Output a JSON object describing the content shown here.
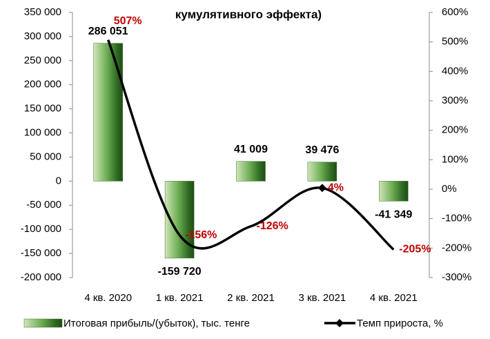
{
  "chart_data": {
    "type": "bar_line",
    "title": "кумулятивного эффекта)",
    "categories": [
      "4 кв. 2020",
      "1 кв. 2021",
      "2 кв. 2021",
      "3 кв. 2021",
      "4 кв. 2021"
    ],
    "series": [
      {
        "name": "Итоговая прибыль/(убыток), тыс. тенге",
        "type": "bar",
        "color": "#4e8a3e",
        "values": [
          286051,
          -159720,
          41009,
          39476,
          -41349
        ],
        "value_labels": [
          "286 051",
          "-159 720",
          "41 009",
          "39 476",
          "-41 349"
        ]
      },
      {
        "name": "Темп прироста, %",
        "type": "line",
        "axis": "y2",
        "color": "#000000",
        "values": [
          507,
          -156,
          -126,
          4,
          -205
        ],
        "value_labels": [
          "507%",
          "-156%",
          "-126%",
          "4%",
          "-205%"
        ],
        "label_color": "#c00000"
      }
    ],
    "ylim": [
      -200000,
      350000
    ],
    "yticks": [
      {
        "value": -200000,
        "label": "-200 000"
      },
      {
        "value": -150000,
        "label": "-150 000"
      },
      {
        "value": -100000,
        "label": "-100 000"
      },
      {
        "value": -50000,
        "label": "-50 000"
      },
      0,
      {
        "value": 50000,
        "label": "50 000"
      },
      {
        "value": 100000,
        "label": "100 000"
      },
      {
        "value": 150000,
        "label": "150 000"
      },
      {
        "value": 200000,
        "label": "200 000"
      },
      {
        "value": 250000,
        "label": "250 000"
      },
      {
        "value": 300000,
        "label": "300 000"
      },
      {
        "value": 350000,
        "label": "350 000"
      }
    ],
    "y2lim": [
      -300,
      600
    ],
    "y2ticks": [
      {
        "value": -300,
        "label": "-300%"
      },
      {
        "value": -200,
        "label": "-200%"
      },
      {
        "value": -100,
        "label": "-100%"
      },
      {
        "value": 0,
        "label": "0%"
      },
      {
        "value": 100,
        "label": "100%"
      },
      {
        "value": 200,
        "label": "200%"
      },
      {
        "value": 300,
        "label": "300%"
      },
      {
        "value": 400,
        "label": "400%"
      },
      {
        "value": 500,
        "label": "500%"
      },
      {
        "value": 600,
        "label": "600%"
      }
    ],
    "legend": "bottom"
  }
}
